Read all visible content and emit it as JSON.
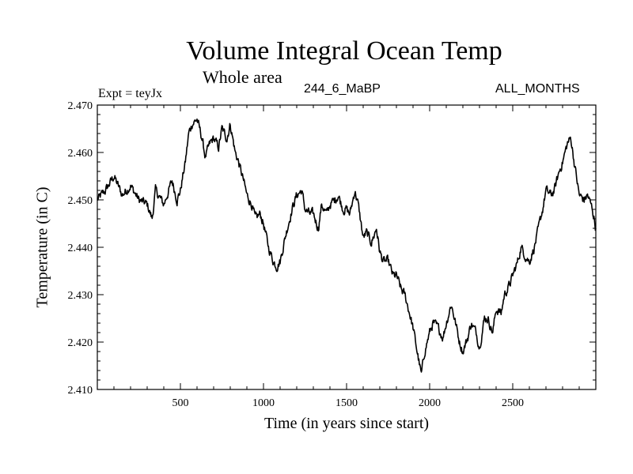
{
  "chart_data": {
    "type": "line",
    "title": "Volume Integral Ocean Temp",
    "subtitle": "Whole area",
    "header_left": "Expt = teyJx",
    "header_center": "244_6_MaBP",
    "header_right": "ALL_MONTHS",
    "xlabel": "Time (in years since start)",
    "ylabel": "Temperature (in C)",
    "xlim": [
      0,
      3000
    ],
    "ylim": [
      2.41,
      2.47
    ],
    "x_ticks": [
      500,
      1000,
      1500,
      2000,
      2500
    ],
    "x_tick_labels": [
      "500",
      "1000",
      "1500",
      "2000",
      "2500"
    ],
    "y_ticks": [
      2.41,
      2.42,
      2.43,
      2.44,
      2.45,
      2.46,
      2.47
    ],
    "y_tick_labels": [
      "2.410",
      "2.420",
      "2.430",
      "2.440",
      "2.450",
      "2.460",
      "2.470"
    ],
    "series": [
      {
        "name": "Volume Integral Ocean Temp",
        "x": [
          0,
          50,
          100,
          150,
          200,
          250,
          300,
          330,
          350,
          400,
          450,
          480,
          500,
          530,
          550,
          570,
          600,
          630,
          650,
          680,
          700,
          730,
          750,
          780,
          800,
          830,
          850,
          880,
          900,
          930,
          950,
          980,
          1000,
          1030,
          1060,
          1080,
          1100,
          1130,
          1150,
          1180,
          1200,
          1230,
          1250,
          1280,
          1300,
          1330,
          1350,
          1380,
          1400,
          1430,
          1450,
          1480,
          1500,
          1520,
          1550,
          1570,
          1600,
          1620,
          1650,
          1680,
          1700,
          1720,
          1750,
          1780,
          1800,
          1830,
          1850,
          1880,
          1900,
          1920,
          1950,
          1970,
          2000,
          2020,
          2050,
          2080,
          2100,
          2130,
          2150,
          2180,
          2200,
          2230,
          2250,
          2280,
          2300,
          2330,
          2350,
          2380,
          2400,
          2430,
          2450,
          2480,
          2500,
          2530,
          2550,
          2580,
          2600,
          2630,
          2650,
          2680,
          2700,
          2730,
          2750,
          2780,
          2800,
          2830,
          2850,
          2870,
          2900,
          2930,
          2950,
          2980,
          3000
        ],
        "y": [
          2.45,
          2.452,
          2.455,
          2.451,
          2.453,
          2.45,
          2.449,
          2.446,
          2.452,
          2.449,
          2.454,
          2.45,
          2.452,
          2.458,
          2.464,
          2.466,
          2.467,
          2.463,
          2.459,
          2.462,
          2.463,
          2.461,
          2.465,
          2.463,
          2.466,
          2.46,
          2.458,
          2.454,
          2.451,
          2.449,
          2.446,
          2.447,
          2.445,
          2.44,
          2.437,
          2.436,
          2.437,
          2.442,
          2.445,
          2.449,
          2.451,
          2.452,
          2.448,
          2.447,
          2.447,
          2.444,
          2.449,
          2.447,
          2.449,
          2.45,
          2.451,
          2.448,
          2.448,
          2.447,
          2.452,
          2.449,
          2.442,
          2.443,
          2.441,
          2.444,
          2.439,
          2.437,
          2.437,
          2.434,
          2.434,
          2.431,
          2.43,
          2.426,
          2.423,
          2.419,
          2.413,
          2.418,
          2.422,
          2.424,
          2.423,
          2.421,
          2.424,
          2.428,
          2.425,
          2.42,
          2.418,
          2.421,
          2.424,
          2.422,
          2.419,
          2.425,
          2.425,
          2.422,
          2.427,
          2.426,
          2.43,
          2.432,
          2.434,
          2.437,
          2.44,
          2.438,
          2.437,
          2.44,
          2.443,
          2.448,
          2.452,
          2.451,
          2.452,
          2.456,
          2.458,
          2.462,
          2.463,
          2.458,
          2.451,
          2.45,
          2.451,
          2.448,
          2.444
        ]
      }
    ]
  }
}
